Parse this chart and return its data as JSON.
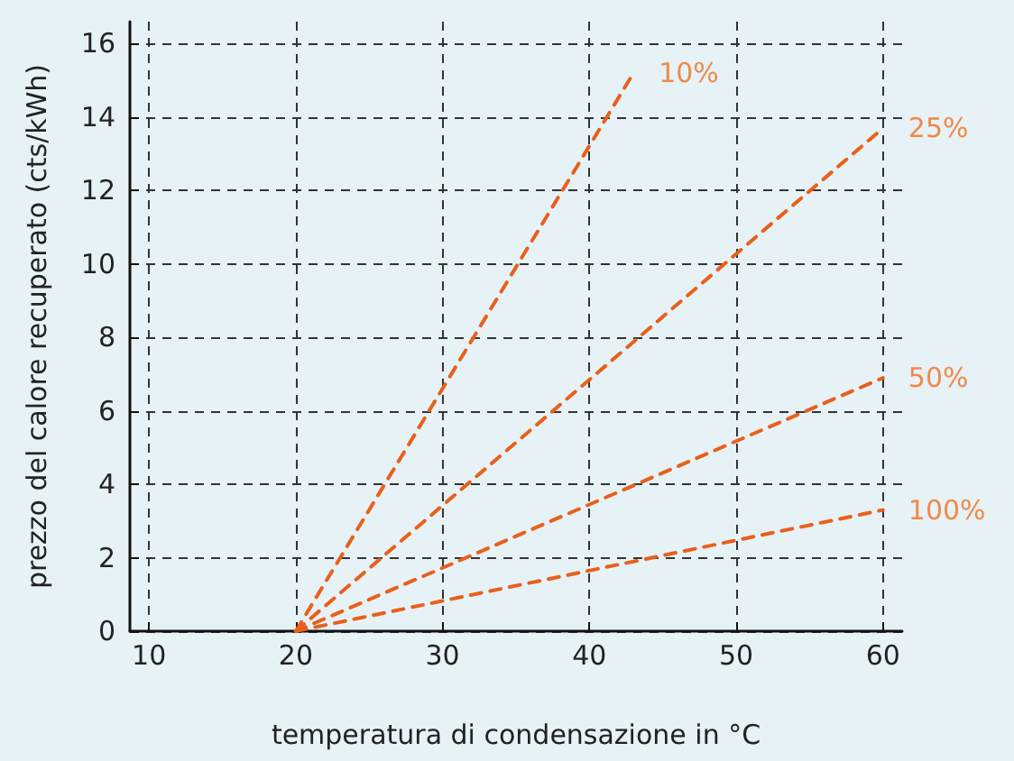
{
  "chart_data": {
    "type": "line",
    "xlabel": "temperatura di condensazione in °C",
    "ylabel": "prezzo del calore recuperato (cts/kWh)",
    "series": [
      {
        "name": "10%",
        "color": "#e8601c",
        "x": [
          20,
          43
        ],
        "values": [
          0,
          15.2
        ]
      },
      {
        "name": "25%",
        "color": "#e8601c",
        "x": [
          20,
          60
        ],
        "values": [
          0,
          13.7
        ]
      },
      {
        "name": "50%",
        "color": "#e8601c",
        "x": [
          20,
          60
        ],
        "values": [
          0,
          6.9
        ]
      },
      {
        "name": "100%",
        "color": "#e8601c",
        "x": [
          20,
          60
        ],
        "values": [
          0,
          3.3
        ]
      }
    ],
    "xlim": [
      8.7,
      61.3
    ],
    "ylim": [
      0,
      16.6
    ],
    "xticks": [
      10,
      20,
      30,
      40,
      50,
      60
    ],
    "yticks": [
      0,
      2,
      4,
      6,
      8,
      10,
      12,
      14,
      16
    ],
    "grid": true,
    "legend": false,
    "marker": "none",
    "line_style": "dashed"
  }
}
